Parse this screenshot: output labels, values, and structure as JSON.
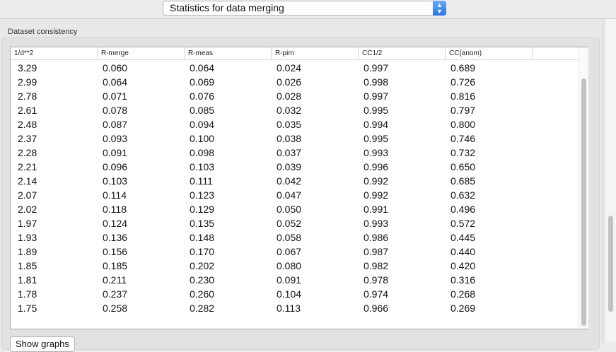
{
  "dropdown": {
    "selected": "Statistics for data merging",
    "arrow_icon": "up-down-chevron-icon"
  },
  "group": {
    "label": "Dataset consistency"
  },
  "table": {
    "columns": [
      "1/d**2",
      "R-merge",
      "R-meas",
      "R-pim",
      "CC1/2",
      "CC(anom)"
    ],
    "rows": [
      [
        "3.29",
        "0.060",
        "0.064",
        "0.024",
        "0.997",
        "0.689"
      ],
      [
        "2.99",
        "0.064",
        "0.069",
        "0.026",
        "0.998",
        "0.726"
      ],
      [
        "2.78",
        "0.071",
        "0.076",
        "0.028",
        "0.997",
        "0.816"
      ],
      [
        "2.61",
        "0.078",
        "0.085",
        "0.032",
        "0.995",
        "0.797"
      ],
      [
        "2.48",
        "0.087",
        "0.094",
        "0.035",
        "0.994",
        "0.800"
      ],
      [
        "2.37",
        "0.093",
        "0.100",
        "0.038",
        "0.995",
        "0.746"
      ],
      [
        "2.28",
        "0.091",
        "0.098",
        "0.037",
        "0.993",
        "0.732"
      ],
      [
        "2.21",
        "0.096",
        "0.103",
        "0.039",
        "0.996",
        "0.650"
      ],
      [
        "2.14",
        "0.103",
        "0.111",
        "0.042",
        "0.992",
        "0.685"
      ],
      [
        "2.07",
        "0.114",
        "0.123",
        "0.047",
        "0.992",
        "0.632"
      ],
      [
        "2.02",
        "0.118",
        "0.129",
        "0.050",
        "0.991",
        "0.496"
      ],
      [
        "1.97",
        "0.124",
        "0.135",
        "0.052",
        "0.993",
        "0.572"
      ],
      [
        "1.93",
        "0.136",
        "0.148",
        "0.058",
        "0.986",
        "0.445"
      ],
      [
        "1.89",
        "0.156",
        "0.170",
        "0.067",
        "0.987",
        "0.440"
      ],
      [
        "1.85",
        "0.185",
        "0.202",
        "0.080",
        "0.982",
        "0.420"
      ],
      [
        "1.81",
        "0.211",
        "0.230",
        "0.091",
        "0.978",
        "0.316"
      ],
      [
        "1.78",
        "0.237",
        "0.260",
        "0.104",
        "0.974",
        "0.268"
      ],
      [
        "1.75",
        "0.258",
        "0.282",
        "0.113",
        "0.966",
        "0.269"
      ]
    ]
  },
  "buttons": {
    "show_graphs": "Show graphs"
  }
}
